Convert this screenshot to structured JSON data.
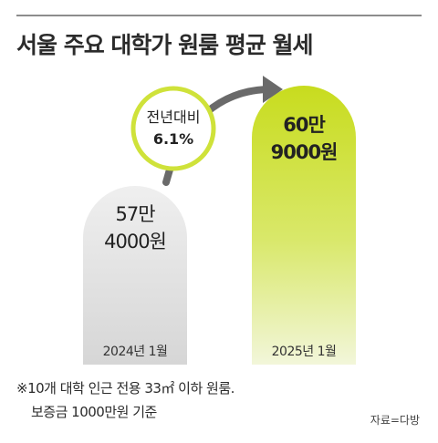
{
  "title": "서울 주요 대학가 원룸 평균 월세",
  "chart_data": {
    "type": "bar",
    "categories": [
      "2024년 1월",
      "2025년 1월"
    ],
    "values": [
      574000,
      609000
    ],
    "value_labels": [
      [
        "57만",
        "4000원"
      ],
      [
        "60만",
        "9000원"
      ]
    ],
    "bar_colors": [
      "#e1e1e1",
      "#cfe23a"
    ],
    "change_badge": {
      "label": "전년대비",
      "value": "6.1%"
    }
  },
  "note": {
    "line1": "※10개 대학 인근 전용 33㎡ 이하 원룸.",
    "line2": "보증금 1000만원 기준"
  },
  "source": "자료=다방"
}
